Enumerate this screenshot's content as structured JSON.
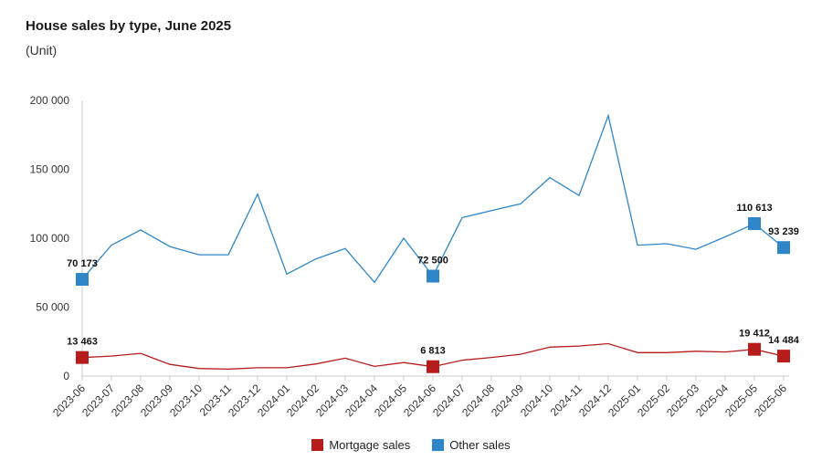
{
  "title": "House sales by type, June 2025",
  "subtitle": "(Unit)",
  "colors": {
    "mortgage": "#b71c1c",
    "other": "#2e86c8",
    "axis": "#cccccc",
    "text": "#333333"
  },
  "chart_data": {
    "type": "line",
    "title": "House sales by type, June 2025",
    "ylabel": "(Unit)",
    "ylim": [
      0,
      200000
    ],
    "yticks": [
      0,
      50000,
      100000,
      150000,
      200000
    ],
    "ytick_labels": [
      "0",
      "50 000",
      "100 000",
      "150 000",
      "200 000"
    ],
    "grid": false,
    "legend": "bottom",
    "categories": [
      "2023-06",
      "2023-07",
      "2023-08",
      "2023-09",
      "2023-10",
      "2023-11",
      "2023-12",
      "2024-01",
      "2024-02",
      "2024-03",
      "2024-04",
      "2024-05",
      "2024-06",
      "2024-07",
      "2024-08",
      "2024-09",
      "2024-10",
      "2024-11",
      "2024-12",
      "2025-01",
      "2025-02",
      "2025-03",
      "2025-04",
      "2025-05",
      "2025-06"
    ],
    "series": [
      {
        "name": "Mortgage sales",
        "color": "#b71c1c",
        "values": [
          13463,
          14500,
          16500,
          8500,
          5500,
          5000,
          6000,
          6000,
          8800,
          13000,
          7000,
          9800,
          6813,
          11500,
          13500,
          15800,
          21000,
          21800,
          23500,
          17000,
          17000,
          18000,
          17500,
          19412,
          14484
        ],
        "marker_indices": [
          0,
          12,
          23,
          24
        ],
        "data_labels": [
          "13 463",
          "6 813",
          "19 412",
          "14 484"
        ]
      },
      {
        "name": "Other sales",
        "color": "#2e86c8",
        "values": [
          70173,
          95000,
          106000,
          94000,
          88000,
          88000,
          132000,
          74000,
          85000,
          92500,
          68000,
          100000,
          72500,
          115000,
          120000,
          125000,
          144000,
          131000,
          189000,
          95000,
          96000,
          92000,
          101000,
          110613,
          93239
        ],
        "marker_indices": [
          0,
          12,
          23,
          24
        ],
        "data_labels": [
          "70 173",
          "72 500",
          "110 613",
          "93 239"
        ]
      }
    ]
  },
  "legend": [
    {
      "label": "Mortgage sales",
      "color": "#b71c1c"
    },
    {
      "label": "Other sales",
      "color": "#2e86c8"
    }
  ]
}
